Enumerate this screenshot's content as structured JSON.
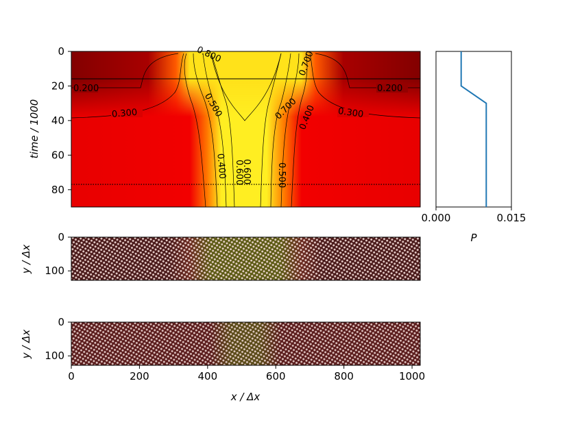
{
  "colors": {
    "heat_low": "#7a0000",
    "heat_mid": "#e40000",
    "heat_high": "#ffff22",
    "profile_line": "#1f77b4",
    "lattice_dot": "#f2d6d2",
    "lattice_bg_red": "#4a1010",
    "lattice_bg_yellow": "#5d5a10"
  },
  "chart_data": [
    {
      "type": "heatmap",
      "ylabel": "time / 1000",
      "xlim": [
        0,
        1024
      ],
      "ylim": [
        90,
        0
      ],
      "y_ticks": [
        "0",
        "20",
        "40",
        "60",
        "80"
      ],
      "horizontal_lines": [
        {
          "y": 15,
          "style": "solid"
        },
        {
          "y": 77,
          "style": "dotted"
        }
      ],
      "contour_labels": [
        {
          "text": "0.200",
          "x": 25,
          "y": 21
        },
        {
          "text": "0.200",
          "x": 905,
          "y": 21
        },
        {
          "text": "0.300",
          "x": 150,
          "y": 34
        },
        {
          "text": "0.300",
          "x": 820,
          "y": 34
        },
        {
          "text": "0.400",
          "x": 390,
          "y": 63
        },
        {
          "text": "0.400",
          "x": 660,
          "y": 34
        },
        {
          "text": "0.500",
          "x": 385,
          "y": 30
        },
        {
          "text": "0.500",
          "x": 600,
          "y": 66
        },
        {
          "text": "0.600",
          "x": 440,
          "y": 62
        },
        {
          "text": "0.600",
          "x": 665,
          "y": 6
        },
        {
          "text": "0.700",
          "x": 460,
          "y": 62
        },
        {
          "text": "0.700",
          "x": 610,
          "y": 26
        },
        {
          "text": "0.800",
          "x": 395,
          "y": 3
        }
      ]
    },
    {
      "type": "line",
      "xlabel": "P",
      "xlim": [
        0.0,
        0.015
      ],
      "ylim": [
        90,
        0
      ],
      "x_ticks": [
        "0.000",
        "0.015"
      ],
      "series": [
        {
          "x": [
            0.005,
            0.005,
            0.01,
            0.01
          ],
          "y": [
            0,
            20,
            30,
            90
          ]
        }
      ]
    },
    {
      "type": "heatmap",
      "ylabel": "y / Δx",
      "xlim": [
        0,
        1024
      ],
      "ylim": [
        128,
        0
      ],
      "y_ticks": [
        "0",
        "100"
      ]
    },
    {
      "type": "heatmap",
      "xlabel": "x / Δx",
      "ylabel": "y / Δx",
      "xlim": [
        0,
        1024
      ],
      "ylim": [
        128,
        0
      ],
      "x_ticks": [
        "0",
        "200",
        "400",
        "600",
        "800",
        "1000"
      ],
      "y_ticks": [
        "0",
        "100"
      ]
    }
  ]
}
